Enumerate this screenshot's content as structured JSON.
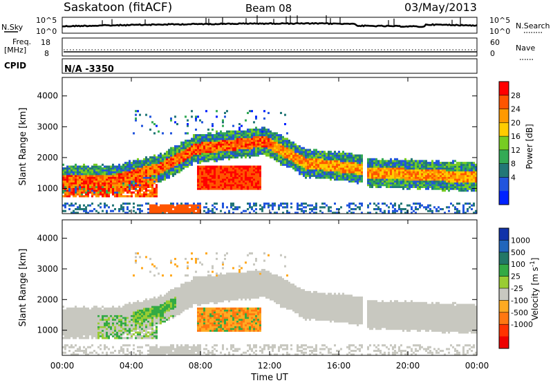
{
  "header": {
    "title": "Saskatoon (fitACF)",
    "beam": "Beam 08",
    "date": "03/May/2013"
  },
  "top_panels": {
    "nsky_label": "N.Sky",
    "nsearch_label": "N.Search",
    "noise_ticks": [
      "10^5",
      "10^0"
    ],
    "freq_label": "Freq.",
    "freq_unit": "[MHz]",
    "freq_ticks": [
      "18",
      "8"
    ],
    "nave_label": "Nave",
    "nave_ticks": [
      "60",
      "0"
    ],
    "cpid_label": "CPID",
    "cpid_value": "N/A -3350"
  },
  "chart_data": [
    {
      "type": "heatmap",
      "name": "power",
      "ylabel": "Slant Range [km]",
      "xlabel": "",
      "yticks": [
        "1000",
        "2000",
        "3000",
        "4000"
      ],
      "ylim": [
        180,
        4600
      ],
      "xlim": [
        0,
        24
      ],
      "colorbar": {
        "label": "Power [dB]",
        "ticks": [
          "4",
          "8",
          "12",
          "16",
          "20",
          "24",
          "28"
        ],
        "colors": [
          "#0022ff",
          "#2255dd",
          "#227777",
          "#33aa55",
          "#77cc22",
          "#ffcc00",
          "#ff9900",
          "#ff5500",
          "#ff0000"
        ]
      }
    },
    {
      "type": "heatmap",
      "name": "velocity",
      "ylabel": "Slant Range [km]",
      "xlabel": "Time UT",
      "yticks": [
        "1000",
        "2000",
        "3000",
        "4000"
      ],
      "xticks": [
        "00:00",
        "04:00",
        "08:00",
        "12:00",
        "16:00",
        "20:00",
        "00:00"
      ],
      "ylim": [
        180,
        4600
      ],
      "xlim": [
        0,
        24
      ],
      "colorbar": {
        "label": "Velocity [m s^-1]",
        "ticks": [
          "1000",
          "500",
          "100",
          "25",
          "-25",
          "-100",
          "-500",
          "-1000"
        ],
        "colors": [
          "#1133aa",
          "#2266bb",
          "#227766",
          "#33aa44",
          "#99cc33",
          "#c8c8c0",
          "#ffaa22",
          "#ff7711",
          "#ff3300",
          "#ee0000"
        ]
      }
    }
  ]
}
